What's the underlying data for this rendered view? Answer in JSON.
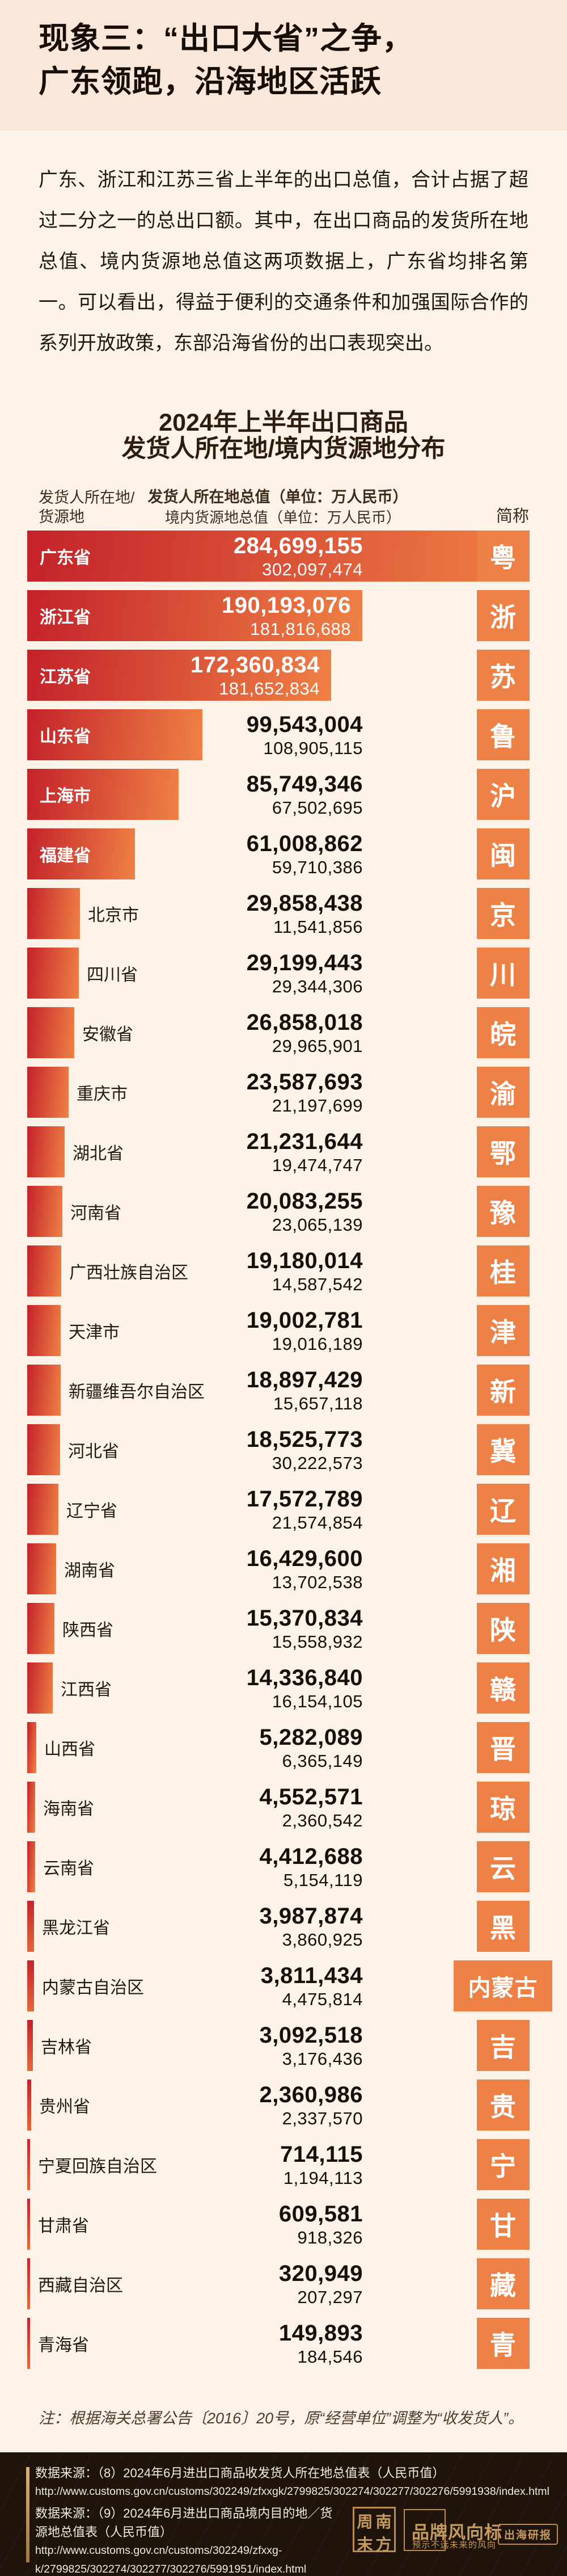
{
  "hero": {
    "title_line1": "现象三：“出口大省”之争，",
    "title_line2": "广东领跑，沿海地区活跃"
  },
  "intro": {
    "paragraph": "广东、浙江和江苏三省上半年的出口总值，合计占据了超过二分之一的总出口额。其中，在出口商品的发货所在地总值、境内货源地总值这两项数据上，广东省均排名第一。可以看出，得益于便利的交通条件和加强国际合作的系列开放政策，东部沿海省份的出口表现突出。"
  },
  "chart_header": {
    "title_line1": "2024年上半年出口商品",
    "title_line2": "发货人所在地/境内货源地分布",
    "legend_left_line1": "发货人所在地/",
    "legend_left_line2": "货源地",
    "legend_center_line1": "发货人所在地总值（单位：万人民币）",
    "legend_center_line2": "境内货源地总值（单位：万人民币）",
    "legend_right": "简称"
  },
  "chart_data": {
    "type": "bar",
    "orientation": "horizontal",
    "title": "2024年上半年出口商品发货人所在地/境内货源地分布",
    "unit": "万人民币",
    "series_names": [
      "发货人所在地总值",
      "境内货源地总值"
    ],
    "max_value": 284699155,
    "colors": {
      "bar_gradient_start": "#C4222A",
      "bar_gradient_end": "#EF8145",
      "abbr_box": "#ED8044",
      "value_dark": "#16100B",
      "value_light": "#FFFFFF"
    },
    "rows": [
      {
        "name": "广东省",
        "abbr": "粤",
        "origin_value": 284699155,
        "source_value": 302097474,
        "origin_display": "284,699,155",
        "source_display": "302,097,474"
      },
      {
        "name": "浙江省",
        "abbr": "浙",
        "origin_value": 190193076,
        "source_value": 181816688,
        "origin_display": "190,193,076",
        "source_display": "181,816,688"
      },
      {
        "name": "江苏省",
        "abbr": "苏",
        "origin_value": 172360834,
        "source_value": 181652834,
        "origin_display": "172,360,834",
        "source_display": "181,652,834"
      },
      {
        "name": "山东省",
        "abbr": "鲁",
        "origin_value": 99543004,
        "source_value": 108905115,
        "origin_display": "99,543,004",
        "source_display": "108,905,115"
      },
      {
        "name": "上海市",
        "abbr": "沪",
        "origin_value": 85749346,
        "source_value": 67502695,
        "origin_display": "85,749,346",
        "source_display": "67,502,695"
      },
      {
        "name": "福建省",
        "abbr": "闽",
        "origin_value": 61008862,
        "source_value": 59710386,
        "origin_display": "61,008,862",
        "source_display": "59,710,386"
      },
      {
        "name": "北京市",
        "abbr": "京",
        "origin_value": 29858438,
        "source_value": 11541856,
        "origin_display": "29,858,438",
        "source_display": "11,541,856"
      },
      {
        "name": "四川省",
        "abbr": "川",
        "origin_value": 29199443,
        "source_value": 29344306,
        "origin_display": "29,199,443",
        "source_display": "29,344,306"
      },
      {
        "name": "安徽省",
        "abbr": "皖",
        "origin_value": 26858018,
        "source_value": 29965901,
        "origin_display": "26,858,018",
        "source_display": "29,965,901"
      },
      {
        "name": "重庆市",
        "abbr": "渝",
        "origin_value": 23587693,
        "source_value": 21197699,
        "origin_display": "23,587,693",
        "source_display": "21,197,699"
      },
      {
        "name": "湖北省",
        "abbr": "鄂",
        "origin_value": 21231644,
        "source_value": 19474747,
        "origin_display": "21,231,644",
        "source_display": "19,474,747"
      },
      {
        "name": "河南省",
        "abbr": "豫",
        "origin_value": 20083255,
        "source_value": 23065139,
        "origin_display": "20,083,255",
        "source_display": "23,065,139"
      },
      {
        "name": "广西壮族自治区",
        "abbr": "桂",
        "origin_value": 19180014,
        "source_value": 14587542,
        "origin_display": "19,180,014",
        "source_display": "14,587,542"
      },
      {
        "name": "天津市",
        "abbr": "津",
        "origin_value": 19002781,
        "source_value": 19016189,
        "origin_display": "19,002,781",
        "source_display": "19,016,189"
      },
      {
        "name": "新疆维吾尔自治区",
        "abbr": "新",
        "origin_value": 18897429,
        "source_value": 15657118,
        "origin_display": "18,897,429",
        "source_display": "15,657,118"
      },
      {
        "name": "河北省",
        "abbr": "冀",
        "origin_value": 18525773,
        "source_value": 30222573,
        "origin_display": "18,525,773",
        "source_display": "30,222,573"
      },
      {
        "name": "辽宁省",
        "abbr": "辽",
        "origin_value": 17572789,
        "source_value": 21574854,
        "origin_display": "17,572,789",
        "source_display": "21,574,854"
      },
      {
        "name": "湖南省",
        "abbr": "湘",
        "origin_value": 16429600,
        "source_value": 13702538,
        "origin_display": "16,429,600",
        "source_display": "13,702,538"
      },
      {
        "name": "陕西省",
        "abbr": "陕",
        "origin_value": 15370834,
        "source_value": 15558932,
        "origin_display": "15,370,834",
        "source_display": "15,558,932"
      },
      {
        "name": "江西省",
        "abbr": "赣",
        "origin_value": 14336840,
        "source_value": 16154105,
        "origin_display": "14,336,840",
        "source_display": "16,154,105"
      },
      {
        "name": "山西省",
        "abbr": "晋",
        "origin_value": 5282089,
        "source_value": 6365149,
        "origin_display": "5,282,089",
        "source_display": "6,365,149"
      },
      {
        "name": "海南省",
        "abbr": "琼",
        "origin_value": 4552571,
        "source_value": 2360542,
        "origin_display": "4,552,571",
        "source_display": "2,360,542"
      },
      {
        "name": "云南省",
        "abbr": "云",
        "origin_value": 4412688,
        "source_value": 5154119,
        "origin_display": "4,412,688",
        "source_display": "5,154,119"
      },
      {
        "name": "黑龙江省",
        "abbr": "黑",
        "origin_value": 3987874,
        "source_value": 3860925,
        "origin_display": "3,987,874",
        "source_display": "3,860,925"
      },
      {
        "name": "内蒙古自治区",
        "abbr": "内蒙古",
        "origin_value": 3811434,
        "source_value": 4475814,
        "origin_display": "3,811,434",
        "source_display": "4,475,814"
      },
      {
        "name": "吉林省",
        "abbr": "吉",
        "origin_value": 3092518,
        "source_value": 3176436,
        "origin_display": "3,092,518",
        "source_display": "3,176,436"
      },
      {
        "name": "贵州省",
        "abbr": "贵",
        "origin_value": 2360986,
        "source_value": 2337570,
        "origin_display": "2,360,986",
        "source_display": "2,337,570"
      },
      {
        "name": "宁夏回族自治区",
        "abbr": "宁",
        "origin_value": 714115,
        "source_value": 1194113,
        "origin_display": "714,115",
        "source_display": "1,194,113"
      },
      {
        "name": "甘肃省",
        "abbr": "甘",
        "origin_value": 609581,
        "source_value": 918326,
        "origin_display": "609,581",
        "source_display": "918,326"
      },
      {
        "name": "西藏自治区",
        "abbr": "藏",
        "origin_value": 320949,
        "source_value": 207297,
        "origin_display": "320,949",
        "source_display": "207,297"
      },
      {
        "name": "青海省",
        "abbr": "青",
        "origin_value": 149893,
        "source_value": 184546,
        "origin_display": "149,893",
        "source_display": "184,546"
      }
    ]
  },
  "note": "注：根据海关总署公告〔2016〕20号，原“经营单位”调整为“收发货人”。",
  "footer": {
    "source_lines": [
      {
        "text": "数据来源：（8）2024年6月进出口商品收发货人所在地总值表（人民币值）",
        "kind": "cjk",
        "gap": false
      },
      {
        "text": "http://www.customs.gov.cn/customs/302249/zfxxgk/2799825/302274/302277/302276/5991938/index.html",
        "kind": "url",
        "gap": false
      },
      {
        "text": "数据来源：（9）2024年6月进出口商品境内目的地／货",
        "kind": "cjk",
        "gap": true
      },
      {
        "text": "源地总值表（人民币值）",
        "kind": "cjk",
        "gap": false
      },
      {
        "text": "http://www.customs.gov.cn/customs/302249/zfxxg-",
        "kind": "url",
        "gap": false
      },
      {
        "text": "k/2799825/302274/302277/302276/5991951/index.html",
        "kind": "url",
        "gap": false
      }
    ],
    "seal_chars": [
      "周",
      "南",
      "末",
      "方"
    ],
    "brand_title": "品牌风向标",
    "brand_subtitle": "预示不远未来的风向",
    "badge_label": "出海研报",
    "gold_color": "#C59A5D"
  }
}
